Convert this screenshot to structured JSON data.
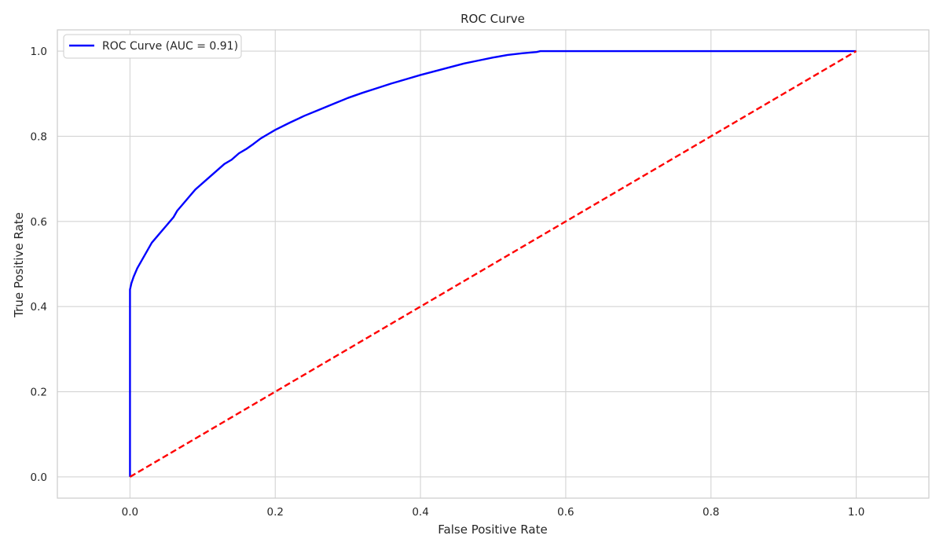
{
  "chart_data": {
    "type": "line",
    "title": "ROC Curve",
    "xlabel": "False Positive Rate",
    "ylabel": "True Positive Rate",
    "xlim": [
      -0.1,
      1.1
    ],
    "ylim": [
      -0.05,
      1.05
    ],
    "xticks": [
      0.0,
      0.2,
      0.4,
      0.6,
      0.8,
      1.0
    ],
    "yticks": [
      0.0,
      0.2,
      0.4,
      0.6,
      0.8,
      1.0
    ],
    "xtick_labels": [
      "0.0",
      "0.2",
      "0.4",
      "0.6",
      "0.8",
      "1.0"
    ],
    "ytick_labels": [
      "0.0",
      "0.2",
      "0.4",
      "0.6",
      "0.8",
      "1.0"
    ],
    "grid": true,
    "legend": {
      "placement": "top-left",
      "entries": [
        {
          "label": "ROC Curve (AUC = 0.91)",
          "color": "#0000ff",
          "style": "solid"
        }
      ]
    },
    "series": [
      {
        "name": "ROC Curve (AUC = 0.91)",
        "color": "#0000ff",
        "style": "solid",
        "x": [
          0.0,
          0.0,
          0.002,
          0.005,
          0.01,
          0.015,
          0.02,
          0.025,
          0.03,
          0.04,
          0.05,
          0.055,
          0.06,
          0.065,
          0.07,
          0.08,
          0.09,
          0.1,
          0.11,
          0.12,
          0.13,
          0.14,
          0.15,
          0.16,
          0.17,
          0.18,
          0.19,
          0.2,
          0.22,
          0.24,
          0.26,
          0.28,
          0.3,
          0.32,
          0.34,
          0.36,
          0.38,
          0.4,
          0.42,
          0.44,
          0.46,
          0.48,
          0.5,
          0.52,
          0.54,
          0.56,
          0.565,
          0.6,
          0.7,
          0.8,
          0.9,
          1.0
        ],
        "y": [
          0.0,
          0.44,
          0.455,
          0.47,
          0.49,
          0.505,
          0.52,
          0.535,
          0.55,
          0.57,
          0.59,
          0.6,
          0.61,
          0.625,
          0.635,
          0.655,
          0.675,
          0.69,
          0.705,
          0.72,
          0.735,
          0.745,
          0.76,
          0.77,
          0.782,
          0.795,
          0.805,
          0.815,
          0.832,
          0.848,
          0.862,
          0.876,
          0.89,
          0.902,
          0.913,
          0.924,
          0.934,
          0.944,
          0.953,
          0.962,
          0.971,
          0.978,
          0.985,
          0.991,
          0.995,
          0.998,
          1.0,
          1.0,
          1.0,
          1.0,
          1.0,
          1.0
        ]
      },
      {
        "name": "",
        "color": "#ff0000",
        "style": "dashed",
        "x": [
          0.0,
          1.0
        ],
        "y": [
          0.0,
          1.0
        ]
      }
    ]
  }
}
